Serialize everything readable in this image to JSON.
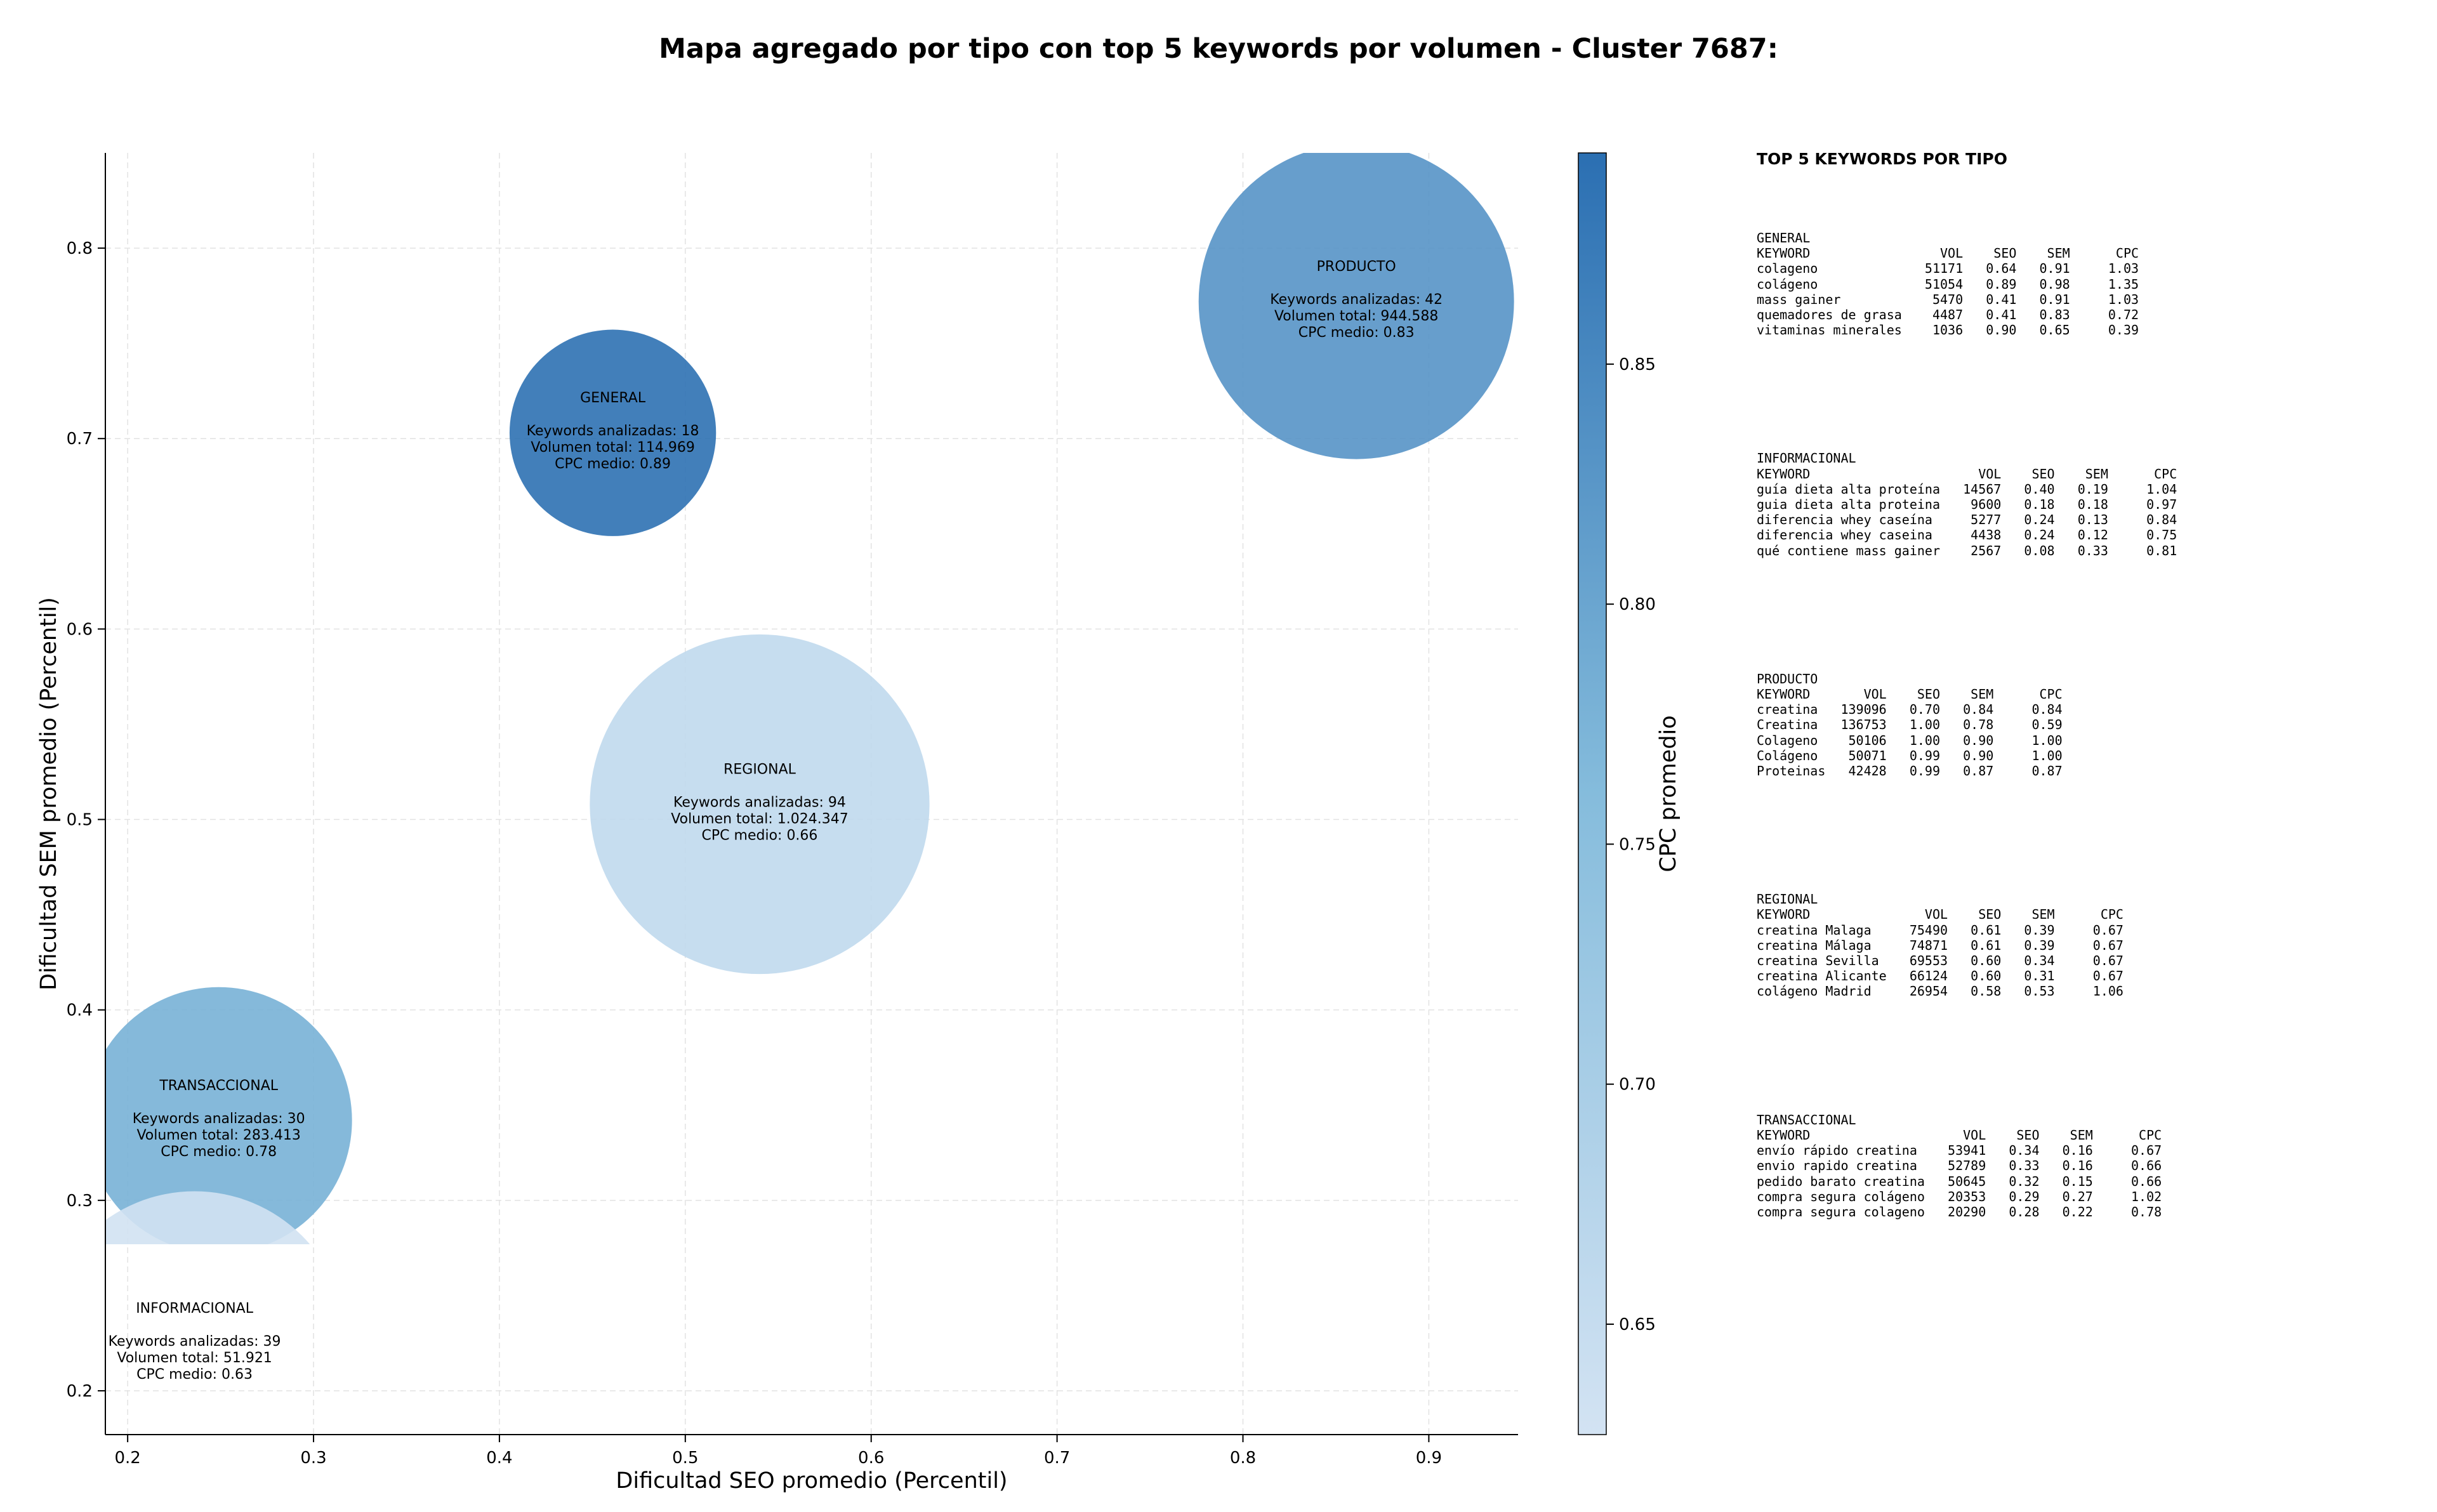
{
  "chart_data": {
    "type": "scatter",
    "title": "Mapa agregado por tipo con top 5 keywords por volumen - Cluster 7687:",
    "xlabel": "Dificultad SEO promedio (Percentil)",
    "ylabel": "Dificultad SEM promedio (Percentil)",
    "xlim": [
      0.188,
      0.948
    ],
    "ylim": [
      0.177,
      0.85
    ],
    "xticks": [
      "0.2",
      "0.3",
      "0.4",
      "0.5",
      "0.6",
      "0.7",
      "0.8",
      "0.9"
    ],
    "yticks": [
      "0.2",
      "0.3",
      "0.4",
      "0.5",
      "0.6",
      "0.7",
      "0.8"
    ],
    "grid": true,
    "colorbar": {
      "label": "CPC promedio",
      "min": 0.627,
      "max": 0.894,
      "ticks": [
        "0.65",
        "0.70",
        "0.75",
        "0.80",
        "0.85"
      ],
      "color_low": "#d3e3f3",
      "color_high": "#2b6fb2"
    },
    "bubbles": [
      {
        "type": "GENERAL",
        "x": 0.461,
        "y": 0.703,
        "keywords_label": "Keywords analizadas: 18",
        "volume_label": "Volumen total: 114.969",
        "cpc_label": "CPC medio: 0.89",
        "cpc": 0.89,
        "keywords": 18
      },
      {
        "type": "PRODUCTO",
        "x": 0.861,
        "y": 0.772,
        "keywords_label": "Keywords analizadas: 42",
        "volume_label": "Volumen total: 944.588",
        "cpc_label": "CPC medio: 0.83",
        "cpc": 0.83,
        "keywords": 42
      },
      {
        "type": "REGIONAL",
        "x": 0.54,
        "y": 0.508,
        "keywords_label": "Keywords analizadas: 94",
        "volume_label": "Volumen total: 1.024.347",
        "cpc_label": "CPC medio: 0.66",
        "cpc": 0.66,
        "keywords": 94
      },
      {
        "type": "TRANSACCIONAL",
        "x": 0.249,
        "y": 0.342,
        "keywords_label": "Keywords analizadas: 30",
        "volume_label": "Volumen total: 283.413",
        "cpc_label": "CPC medio: 0.78",
        "cpc": 0.78,
        "keywords": 30
      },
      {
        "type": "INFORMACIONAL",
        "x": 0.236,
        "y": 0.225,
        "keywords_label": "Keywords analizadas: 39",
        "volume_label": "Volumen total: 51.921",
        "cpc_label": "CPC medio: 0.63",
        "cpc": 0.63,
        "keywords": 39
      }
    ]
  },
  "side_panel": {
    "title": "TOP 5 KEYWORDS POR TIPO",
    "blocks": [
      {
        "name": "GENERAL",
        "lines": [
          "GENERAL",
          "KEYWORD                 VOL    SEO    SEM      CPC",
          "colageno              51171   0.64   0.91     1.03",
          "colágeno              51054   0.89   0.98     1.35",
          "mass gainer            5470   0.41   0.91     1.03",
          "quemadores de grasa    4487   0.41   0.83     0.72",
          "vitaminas minerales    1036   0.90   0.65     0.39"
        ]
      },
      {
        "name": "INFORMACIONAL",
        "lines": [
          "INFORMACIONAL",
          "KEYWORD                      VOL    SEO    SEM      CPC",
          "guía dieta alta proteína   14567   0.40   0.19     1.04",
          "guia dieta alta proteina    9600   0.18   0.18     0.97",
          "diferencia whey caseína     5277   0.24   0.13     0.84",
          "diferencia whey caseina     4438   0.24   0.12     0.75",
          "qué contiene mass gainer    2567   0.08   0.33     0.81"
        ]
      },
      {
        "name": "PRODUCTO",
        "lines": [
          "PRODUCTO",
          "KEYWORD       VOL    SEO    SEM      CPC",
          "creatina   139096   0.70   0.84     0.84",
          "Creatina   136753   1.00   0.78     0.59",
          "Colageno    50106   1.00   0.90     1.00",
          "Colágeno    50071   0.99   0.90     1.00",
          "Proteinas   42428   0.99   0.87     0.87"
        ]
      },
      {
        "name": "REGIONAL",
        "lines": [
          "REGIONAL",
          "KEYWORD               VOL    SEO    SEM      CPC",
          "creatina Malaga     75490   0.61   0.39     0.67",
          "creatina Málaga     74871   0.61   0.39     0.67",
          "creatina Sevilla    69553   0.60   0.34     0.67",
          "creatina Alicante   66124   0.60   0.31     0.67",
          "colágeno Madrid     26954   0.58   0.53     1.06"
        ]
      },
      {
        "name": "TRANSACCIONAL",
        "lines": [
          "TRANSACCIONAL",
          "KEYWORD                    VOL    SEO    SEM      CPC",
          "envío rápido creatina    53941   0.34   0.16     0.67",
          "envio rapido creatina    52789   0.33   0.16     0.66",
          "pedido barato creatina   50645   0.32   0.15     0.66",
          "compra segura colágeno   20353   0.29   0.27     1.02",
          "compra segura colageno   20290   0.28   0.22     0.78"
        ]
      }
    ]
  }
}
